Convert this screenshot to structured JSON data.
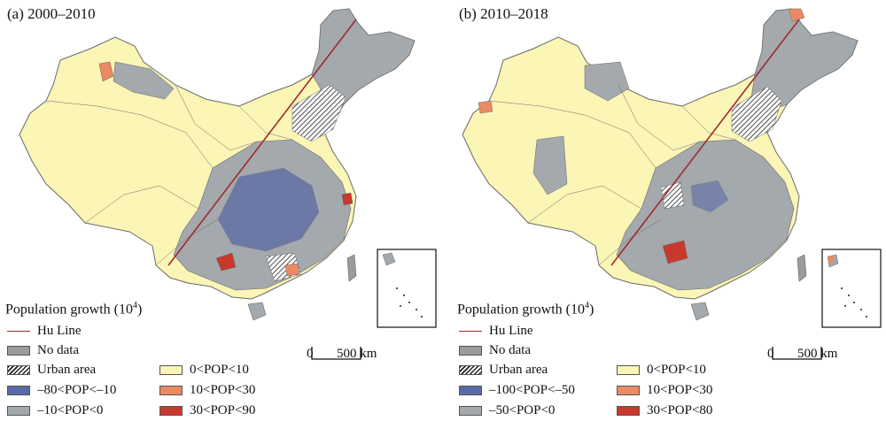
{
  "panels": [
    {
      "title": "(a) 2000–2010",
      "legend_title": "Population growth (10",
      "legend_title_sup": "4",
      "legend_title_end": ")",
      "legend": {
        "hu_line": "Hu Line",
        "no_data": "No data",
        "urban": "Urban area",
        "classes": [
          {
            "label": "–80<POP<–10",
            "color": "#5a6aa6"
          },
          {
            "label": "–10<POP<0",
            "color": "#a3a9ad"
          },
          {
            "label": "0<POP<10",
            "color": "#fbf5b6"
          },
          {
            "label": "10<POP<30",
            "color": "#eb8a64"
          },
          {
            "label": "30<POP<90",
            "color": "#c9382d"
          }
        ]
      },
      "scale": {
        "zero": "0",
        "distance": "500 km"
      }
    },
    {
      "title": "(b) 2010–2018",
      "legend_title": "Population growth (10",
      "legend_title_sup": "4",
      "legend_title_end": ")",
      "legend": {
        "hu_line": "Hu Line",
        "no_data": "No data",
        "urban": "Urban area",
        "classes": [
          {
            "label": "–100<POP<–50",
            "color": "#5a6aa6"
          },
          {
            "label": "–50<POP<0",
            "color": "#a3a9ad"
          },
          {
            "label": "0<POP<10",
            "color": "#fbf5b6"
          },
          {
            "label": "10<POP<30",
            "color": "#eb8a64"
          },
          {
            "label": "30<POP<80",
            "color": "#c9382d"
          }
        ]
      },
      "scale": {
        "zero": "0",
        "distance": "500 km"
      }
    }
  ],
  "colors": {
    "no_data": "#9d9a9c",
    "hu_line": "#a0292e",
    "boundary": "#6a6a6a"
  }
}
